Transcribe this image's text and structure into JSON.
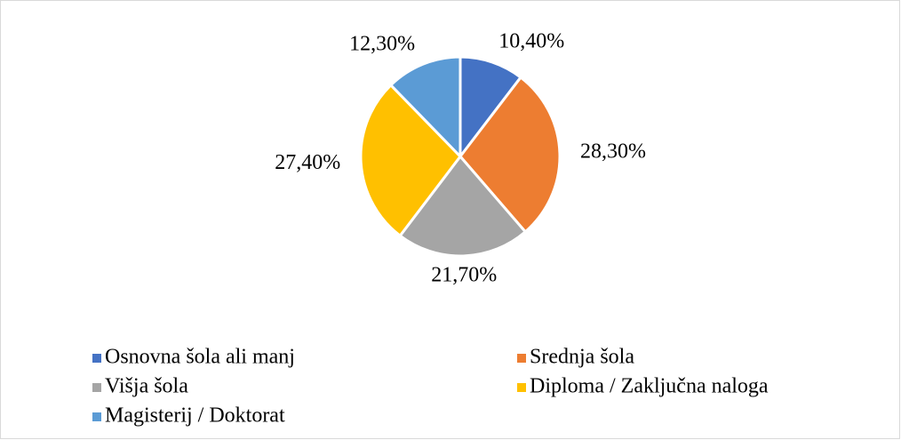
{
  "chart_data": {
    "type": "pie",
    "categories": [
      "Osnovna šola ali manj",
      "Srednja šola",
      "Višja šola",
      "Diploma / Zaključna naloga",
      "Magisterij / Doktorat"
    ],
    "values": [
      10.4,
      28.3,
      21.7,
      27.4,
      12.3
    ],
    "value_labels": [
      "10,40%",
      "28,30%",
      "21,70%",
      "27,40%",
      "12,30%"
    ],
    "colors": [
      "#4472c4",
      "#ed7d31",
      "#a5a5a5",
      "#ffc000",
      "#5b9bd5"
    ],
    "legend": "bottom"
  }
}
